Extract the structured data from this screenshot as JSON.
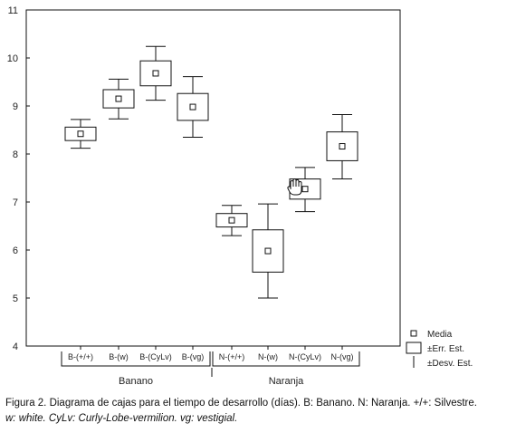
{
  "chart_data": {
    "type": "box",
    "y_ticks": [
      4,
      5,
      6,
      7,
      8,
      9,
      10,
      11
    ],
    "ylim": [
      4,
      11
    ],
    "categories": [
      "B-(+/+)",
      "B-(w)",
      "B-(CyLv)",
      "B-(vg)",
      "N-(+/+)",
      "N-(w)",
      "N-(CyLv)",
      "N-(vg)"
    ],
    "groups": [
      {
        "label": "Banano",
        "members": [
          0,
          1,
          2,
          3
        ]
      },
      {
        "label": "Naranja",
        "members": [
          4,
          5,
          6,
          7
        ]
      }
    ],
    "boxes": [
      {
        "category": "B-(+/+)",
        "mean": 8.42,
        "err_low": 8.28,
        "err_high": 8.56,
        "sd_low": 8.12,
        "sd_high": 8.72
      },
      {
        "category": "B-(w)",
        "mean": 9.15,
        "err_low": 8.96,
        "err_high": 9.34,
        "sd_low": 8.73,
        "sd_high": 9.56
      },
      {
        "category": "B-(CyLv)",
        "mean": 9.68,
        "err_low": 9.42,
        "err_high": 9.94,
        "sd_low": 9.12,
        "sd_high": 10.24
      },
      {
        "category": "B-(vg)",
        "mean": 8.98,
        "err_low": 8.7,
        "err_high": 9.26,
        "sd_low": 8.35,
        "sd_high": 9.61
      },
      {
        "category": "N-(+/+)",
        "mean": 6.62,
        "err_low": 6.48,
        "err_high": 6.76,
        "sd_low": 6.3,
        "sd_high": 6.93
      },
      {
        "category": "N-(w)",
        "mean": 5.98,
        "err_low": 5.54,
        "err_high": 6.42,
        "sd_low": 5.0,
        "sd_high": 6.96
      },
      {
        "category": "N-(CyLv)",
        "mean": 7.27,
        "err_low": 7.06,
        "err_high": 7.48,
        "sd_low": 6.8,
        "sd_high": 7.72
      },
      {
        "category": "N-(vg)",
        "mean": 8.16,
        "err_low": 7.86,
        "err_high": 8.46,
        "sd_low": 7.48,
        "sd_high": 8.82
      }
    ],
    "legend": {
      "position": "bottom-right",
      "entries": [
        "Media",
        "±Err. Est.",
        "±Desv. Est."
      ]
    },
    "grid": false
  },
  "caption": {
    "line1": "Figura 2. Diagrama de cajas para el tiempo de desarrollo (días). B: Banano. N: Naranja. +/+: Silvestre.",
    "line2": "w: white. CyLv: Curly-Lobe-vermilion. vg: vestigial."
  },
  "colors": {
    "stroke": "#111111",
    "box_fill": "#ffffff",
    "background": "#ffffff"
  }
}
